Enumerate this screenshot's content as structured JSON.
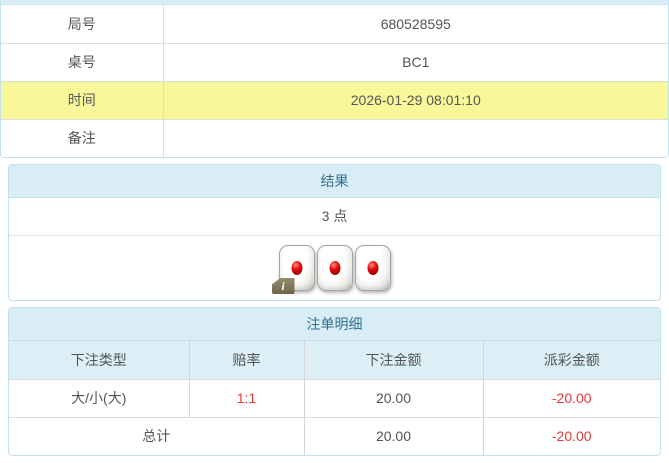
{
  "colors": {
    "heading_bg": "#d9edf7",
    "heading_text": "#31708f",
    "panel_border": "#c3e0ee",
    "highlight_row_bg": "#f8f89b",
    "negative_red": "#e03c3c"
  },
  "game_info": {
    "rows": [
      {
        "label": "局号",
        "value": "680528595"
      },
      {
        "label": "桌号",
        "value": "BC1"
      },
      {
        "label": "时间",
        "value": "2026-01-29 08:01:10"
      },
      {
        "label": "备注",
        "value": ""
      }
    ]
  },
  "result": {
    "title": "结果",
    "points": "3 点",
    "dice": [
      1,
      1,
      1
    ],
    "info_badge": "i"
  },
  "bet_details": {
    "title": "注单明细",
    "columns": [
      "下注类型",
      "赔率",
      "下注金额",
      "派彩金额"
    ],
    "rows": [
      {
        "bet_type": "大/小(大)",
        "odds": "1:1",
        "bet_amount": "20.00",
        "payout_amount": "-20.00"
      }
    ],
    "total_row": {
      "label": "总计",
      "bet_amount": "20.00",
      "payout_amount": "-20.00"
    }
  }
}
